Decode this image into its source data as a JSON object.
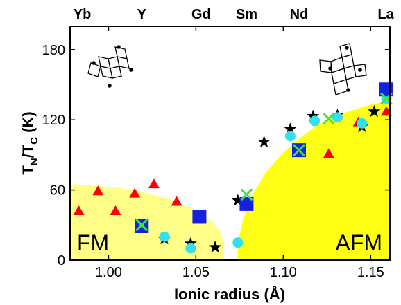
{
  "chart_data": {
    "type": "scatter",
    "xlabel": "Ionic radius (Å)",
    "ylabel_main": "T",
    "ylabel_sub1": "N",
    "ylabel_mid": "/T",
    "ylabel_sub2": "C",
    "ylabel_unit": " (K)",
    "xlim": [
      0.978,
      1.161
    ],
    "ylim": [
      0,
      200
    ],
    "xticks": [
      1.0,
      1.05,
      1.1,
      1.15
    ],
    "xtick_labels": [
      "1.00",
      "1.05",
      "1.10",
      "1.15"
    ],
    "yticks": [
      0,
      60,
      120,
      180
    ],
    "ytick_labels": [
      "0",
      "60",
      "120",
      "180"
    ],
    "grid": false,
    "colors": {
      "region_fill": "#ffff14",
      "region_fm_fill": "#ffff88",
      "triangle": "#ff0000",
      "star": "#000000",
      "circle": "#33e0f0",
      "square": "#1520e0",
      "cross": "#33ee22"
    },
    "elements": [
      {
        "label": "Yb",
        "x": 0.985
      },
      {
        "label": "Y",
        "x": 1.019
      },
      {
        "label": "Gd",
        "x": 1.053
      },
      {
        "label": "Sm",
        "x": 1.079
      },
      {
        "label": "Nd",
        "x": 1.109
      },
      {
        "label": "La",
        "x": 1.16
      }
    ],
    "regions": [
      {
        "label": "FM",
        "boundary": [
          [
            0.978,
            65
          ],
          [
            0.99,
            64
          ],
          [
            1.005,
            62
          ],
          [
            1.02,
            58
          ],
          [
            1.035,
            52
          ],
          [
            1.048,
            44
          ],
          [
            1.058,
            35
          ],
          [
            1.064,
            25
          ],
          [
            1.066,
            15
          ],
          [
            1.066,
            0
          ]
        ]
      },
      {
        "label": "AFM",
        "boundary": [
          [
            1.074,
            0
          ],
          [
            1.074,
            15
          ],
          [
            1.077,
            35
          ],
          [
            1.082,
            55
          ],
          [
            1.09,
            75
          ],
          [
            1.1,
            92
          ],
          [
            1.11,
            105
          ],
          [
            1.12,
            116
          ],
          [
            1.135,
            126
          ],
          [
            1.15,
            133
          ],
          [
            1.161,
            136
          ]
        ]
      }
    ],
    "series": [
      {
        "marker": "triangle",
        "points": [
          [
            0.983,
            42
          ],
          [
            0.994,
            59
          ],
          [
            1.004,
            42
          ],
          [
            1.015,
            57
          ],
          [
            1.026,
            65
          ],
          [
            1.039,
            50
          ],
          [
            1.053,
            36
          ],
          [
            1.126,
            91
          ],
          [
            1.143,
            118
          ],
          [
            1.159,
            127
          ]
        ]
      },
      {
        "marker": "star",
        "points": [
          [
            1.032,
            18
          ],
          [
            1.047,
            14
          ],
          [
            1.061,
            11
          ],
          [
            1.074,
            51
          ],
          [
            1.089,
            101
          ],
          [
            1.104,
            112
          ],
          [
            1.117,
            123
          ],
          [
            1.131,
            124
          ],
          [
            1.145,
            114
          ],
          [
            1.152,
            127
          ]
        ]
      },
      {
        "marker": "circle",
        "points": [
          [
            1.032,
            20
          ],
          [
            1.047,
            10
          ],
          [
            1.074,
            15
          ],
          [
            1.104,
            106
          ],
          [
            1.118,
            119
          ],
          [
            1.131,
            122
          ],
          [
            1.145,
            117
          ],
          [
            1.159,
            138
          ]
        ]
      },
      {
        "marker": "square",
        "points": [
          [
            1.019,
            29
          ],
          [
            1.052,
            37
          ],
          [
            1.079,
            48
          ],
          [
            1.109,
            94
          ],
          [
            1.159,
            146
          ]
        ]
      },
      {
        "marker": "cross",
        "points": [
          [
            1.019,
            30
          ],
          [
            1.079,
            56
          ],
          [
            1.109,
            94
          ],
          [
            1.126,
            121
          ],
          [
            1.159,
            138
          ]
        ]
      }
    ]
  }
}
